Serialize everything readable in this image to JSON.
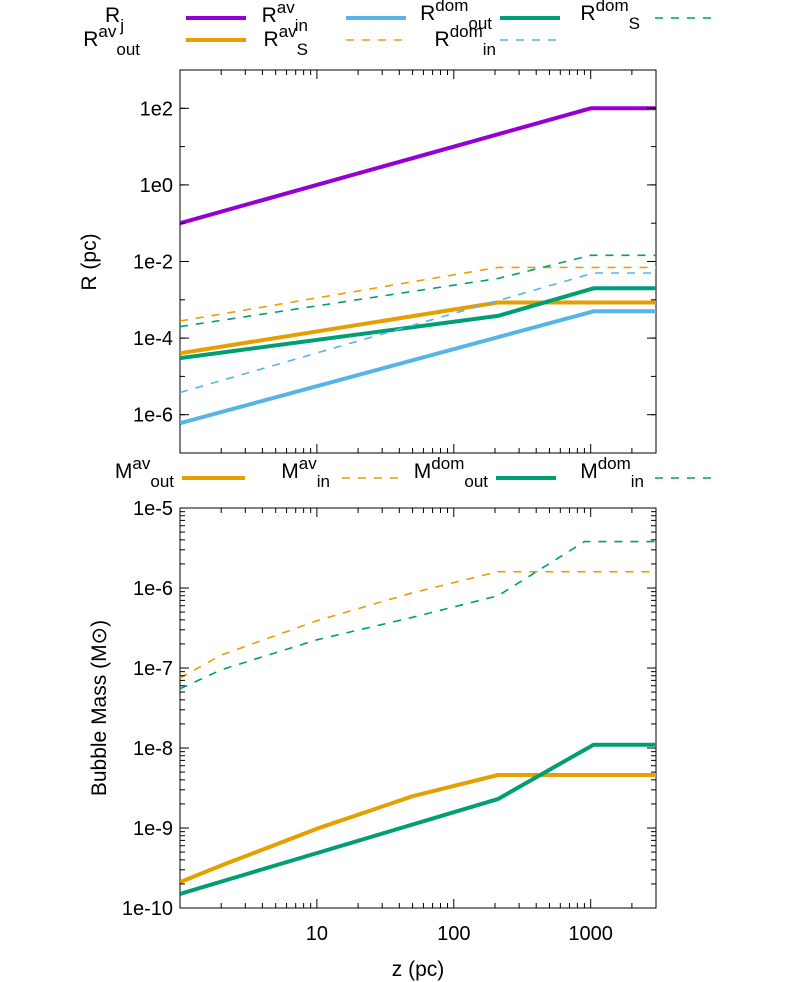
{
  "chart_data": [
    {
      "type": "line",
      "xlabel": "",
      "ylabel": "R (pc)",
      "xscale": "log",
      "yscale": "log",
      "xlim": [
        1,
        3000
      ],
      "ylim": [
        1e-07,
        1000
      ],
      "yticks": [
        {
          "value": 1e-06,
          "label": "1e-6"
        },
        {
          "value": 0.0001,
          "label": "1e-4"
        },
        {
          "value": 0.01,
          "label": "1e-2"
        },
        {
          "value": 1,
          "label": "1e0"
        },
        {
          "value": 100,
          "label": "1e2"
        }
      ],
      "legend_position": "top, outside",
      "series": [
        {
          "name": "R_j",
          "legend": {
            "base": "R",
            "sub": "j",
            "sup": ""
          },
          "color": "#9400d3",
          "style": "solid",
          "width": 4,
          "x": [
            1,
            210,
            1000,
            3000
          ],
          "y": [
            0.1,
            21,
            100,
            100
          ]
        },
        {
          "name": "R_out^av",
          "legend": {
            "base": "R",
            "sub": "out",
            "sup": "av"
          },
          "color": "#e69f00",
          "style": "solid",
          "width": 4,
          "x": [
            1,
            210,
            3000
          ],
          "y": [
            4e-05,
            0.00085,
            0.00085
          ]
        },
        {
          "name": "R_in^av",
          "legend": {
            "base": "R",
            "sub": "in",
            "sup": "av"
          },
          "color": "#56b4e9",
          "style": "solid",
          "width": 4,
          "x": [
            1,
            1050,
            3000
          ],
          "y": [
            6e-07,
            0.0005,
            0.0005
          ]
        },
        {
          "name": "R_S^av",
          "legend": {
            "base": "R",
            "sub": "S",
            "sup": "av"
          },
          "color": "#e69f00",
          "style": "dashed",
          "width": 1.6,
          "x": [
            1,
            210,
            3000
          ],
          "y": [
            0.00028,
            0.007,
            0.007
          ]
        },
        {
          "name": "R_out^dom",
          "legend": {
            "base": "R",
            "sub": "out",
            "sup": "dom"
          },
          "color": "#009e73",
          "style": "solid",
          "width": 4,
          "x": [
            1,
            210,
            1050,
            3000
          ],
          "y": [
            3e-05,
            0.00038,
            0.002,
            0.002
          ]
        },
        {
          "name": "R_in^dom",
          "legend": {
            "base": "R",
            "sub": "in",
            "sup": "dom"
          },
          "color": "#56b4e9",
          "style": "dashed",
          "width": 1.6,
          "x": [
            1,
            1050,
            3000
          ],
          "y": [
            3.8e-06,
            0.005,
            0.005
          ]
        },
        {
          "name": "R_S^dom",
          "legend": {
            "base": "R",
            "sub": "S",
            "sup": "dom"
          },
          "color": "#009e73",
          "style": "dashed",
          "width": 1.6,
          "x": [
            1,
            210,
            1000,
            3000
          ],
          "y": [
            0.0002,
            0.0036,
            0.0145,
            0.0145
          ]
        }
      ]
    },
    {
      "type": "line",
      "xlabel": "z (pc)",
      "ylabel": "Bubble Mass (M",
      "ylabel_symbol": "⊙",
      "xscale": "log",
      "yscale": "log",
      "xlim": [
        1,
        3000
      ],
      "ylim": [
        1e-10,
        1e-05
      ],
      "xticks": [
        {
          "value": 10,
          "label": "10"
        },
        {
          "value": 100,
          "label": "100"
        },
        {
          "value": 1000,
          "label": "1000"
        }
      ],
      "yticks": [
        {
          "value": 1e-10,
          "label": "1e-10"
        },
        {
          "value": 1e-09,
          "label": "1e-9"
        },
        {
          "value": 1e-08,
          "label": "1e-8"
        },
        {
          "value": 1e-07,
          "label": "1e-7"
        },
        {
          "value": 1e-06,
          "label": "1e-6"
        },
        {
          "value": 1e-05,
          "label": "1e-5"
        }
      ],
      "legend_position": "top, outside",
      "series": [
        {
          "name": "M_out^av",
          "legend": {
            "base": "M",
            "sub": "out",
            "sup": "av"
          },
          "color": "#e69f00",
          "style": "solid",
          "width": 4,
          "x": [
            1,
            2,
            5,
            10,
            50,
            210,
            3000
          ],
          "y": [
            2.1e-10,
            3.4e-10,
            6.2e-10,
            9.8e-10,
            2.5e-09,
            4.6e-09,
            4.6e-09
          ]
        },
        {
          "name": "M_in^av",
          "legend": {
            "base": "M",
            "sub": "in",
            "sup": "av"
          },
          "color": "#e69f00",
          "style": "dashed",
          "width": 1.6,
          "x": [
            1,
            2,
            10,
            50,
            210,
            3000
          ],
          "y": [
            7.5e-08,
            1.45e-07,
            3.9e-07,
            8.7e-07,
            1.6e-06,
            1.6e-06
          ]
        },
        {
          "name": "M_out^dom",
          "legend": {
            "base": "M",
            "sub": "out",
            "sup": "dom"
          },
          "color": "#009e73",
          "style": "solid",
          "width": 4,
          "x": [
            1,
            210,
            1050,
            3000
          ],
          "y": [
            1.5e-10,
            2.3e-09,
            1.1e-08,
            1.1e-08
          ]
        },
        {
          "name": "M_in^dom",
          "legend": {
            "base": "M",
            "sub": "in",
            "sup": "dom"
          },
          "color": "#009e73",
          "style": "dashed",
          "width": 1.6,
          "x": [
            1,
            2,
            10,
            50,
            210,
            900,
            3000
          ],
          "y": [
            5.5e-08,
            9.5e-08,
            2.25e-07,
            4.3e-07,
            8e-07,
            3.8e-06,
            3.8e-06
          ]
        }
      ]
    }
  ]
}
